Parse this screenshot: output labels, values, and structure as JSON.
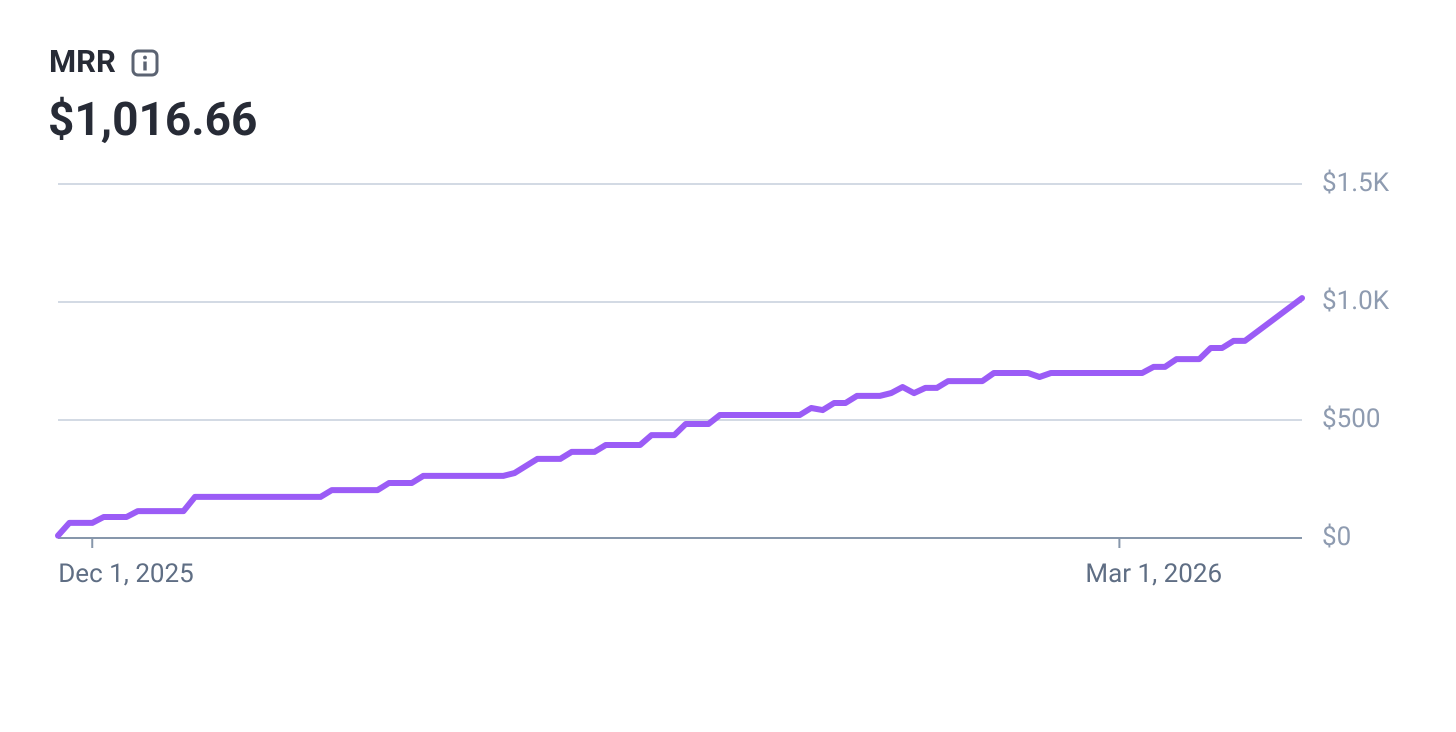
{
  "header": {
    "title": "MRR",
    "headline": "$1,016.66"
  },
  "chart_data": {
    "type": "line",
    "color": "#9b5cf6",
    "x": [
      "2025-11-28",
      "2025-11-29",
      "2025-12-01",
      "2025-12-02",
      "2025-12-04",
      "2025-12-05",
      "2025-12-09",
      "2025-12-10",
      "2025-12-21",
      "2025-12-22",
      "2025-12-26",
      "2025-12-27",
      "2025-12-29",
      "2025-12-30",
      "2026-01-06",
      "2026-01-07",
      "2026-01-09",
      "2026-01-11",
      "2026-01-12",
      "2026-01-14",
      "2026-01-15",
      "2026-01-18",
      "2026-01-19",
      "2026-01-21",
      "2026-01-22",
      "2026-01-24",
      "2026-01-25",
      "2026-02-01",
      "2026-02-02",
      "2026-02-03",
      "2026-02-04",
      "2026-02-05",
      "2026-02-06",
      "2026-02-08",
      "2026-02-09",
      "2026-02-10",
      "2026-02-11",
      "2026-02-12",
      "2026-02-13",
      "2026-02-14",
      "2026-02-17",
      "2026-02-18",
      "2026-02-21",
      "2026-02-22",
      "2026-02-23",
      "2026-03-03",
      "2026-03-04",
      "2026-03-05",
      "2026-03-06",
      "2026-03-08",
      "2026-03-09",
      "2026-03-10",
      "2026-03-11",
      "2026-03-12",
      "2026-03-17"
    ],
    "values": [
      10,
      64,
      64,
      89,
      89,
      114,
      114,
      174,
      174,
      203,
      203,
      233,
      233,
      263,
      263,
      275,
      335,
      335,
      365,
      365,
      394,
      394,
      436,
      436,
      483,
      483,
      521,
      521,
      551,
      542,
      572,
      572,
      602,
      602,
      614,
      640,
      614,
      636,
      636,
      665,
      665,
      699,
      699,
      682,
      699,
      699,
      725,
      725,
      758,
      758,
      805,
      805,
      835,
      835,
      1016.66
    ],
    "xlim": [
      "2025-11-28",
      "2026-03-17"
    ],
    "xticks": [
      {
        "value": "2025-12-01",
        "label": "Dec 1, 2025"
      },
      {
        "value": "2026-03-01",
        "label": "Mar 1, 2026"
      }
    ],
    "ylim": [
      0,
      1500
    ],
    "yticks": [
      {
        "value": 0,
        "label": "$0"
      },
      {
        "value": 500,
        "label": "$500"
      },
      {
        "value": 1000,
        "label": "$1.0K"
      },
      {
        "value": 1500,
        "label": "$1.5K"
      }
    ],
    "grid": true
  }
}
